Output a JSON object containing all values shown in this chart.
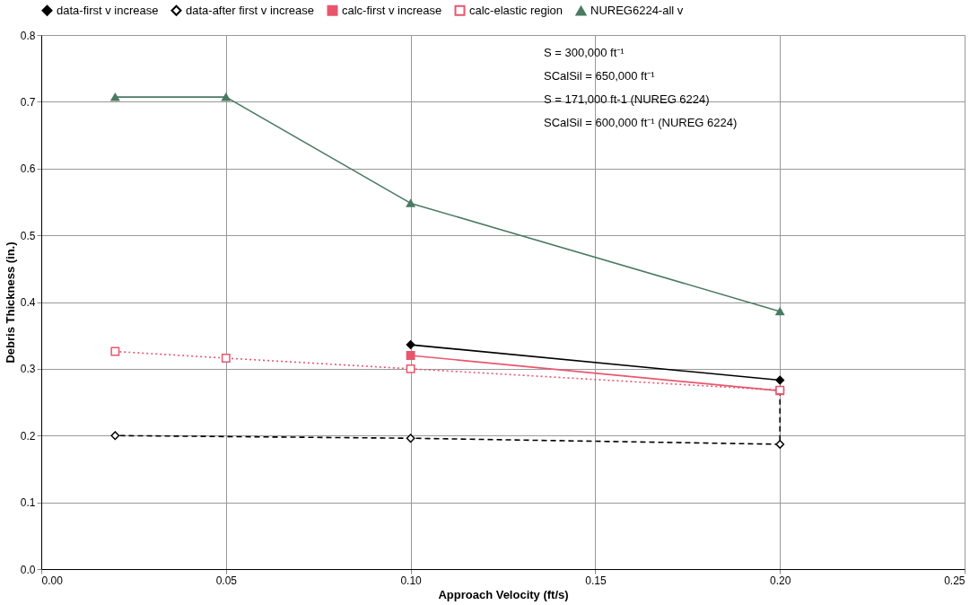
{
  "chart_data": {
    "type": "line",
    "xlabel": "Approach Velocity (ft/s)",
    "ylabel": "Debris Thickness (in.)",
    "xlim": [
      0,
      0.25
    ],
    "ylim": [
      0,
      0.8
    ],
    "xticks": [
      {
        "value": 0,
        "label": "0.00"
      },
      {
        "value": 0.05,
        "label": "0.05"
      },
      {
        "value": 0.1,
        "label": "0.10"
      },
      {
        "value": 0.15,
        "label": "0.15"
      },
      {
        "value": 0.2,
        "label": "0.20"
      },
      {
        "value": 0.25,
        "label": "0.25"
      }
    ],
    "yticks": [
      {
        "value": 0,
        "label": "0.0"
      },
      {
        "value": 0.1,
        "label": "0.1"
      },
      {
        "value": 0.2,
        "label": "0.2"
      },
      {
        "value": 0.3,
        "label": "0.3"
      },
      {
        "value": 0.4,
        "label": "0.4"
      },
      {
        "value": 0.5,
        "label": "0.5"
      },
      {
        "value": 0.6,
        "label": "0.6"
      },
      {
        "value": 0.7,
        "label": "0.7"
      },
      {
        "value": 0.8,
        "label": "0.8"
      }
    ],
    "grid": true,
    "legend": "top",
    "series": [
      {
        "name": "data-first v increase",
        "color": "#000000",
        "marker": "diamond",
        "line_style": "solid",
        "x": [
          0.1,
          0.2
        ],
        "values": [
          0.336,
          0.283
        ]
      },
      {
        "name": "data-after first v increase",
        "color": "#000000",
        "marker": "diamond",
        "line_style": "dashed",
        "x": [
          0.2,
          0.2,
          0.1,
          0.02
        ],
        "values": [
          0.268,
          0.187,
          0.196,
          0.2
        ]
      },
      {
        "name": "calc-first v increase",
        "color": "#e8566e",
        "marker": "square",
        "line_style": "solid",
        "x": [
          0.1,
          0.2
        ],
        "values": [
          0.32,
          0.267
        ]
      },
      {
        "name": "calc-elastic region",
        "color": "#e8566e",
        "marker": "square",
        "line_style": "dotted",
        "x": [
          0.02,
          0.05,
          0.1,
          0.2
        ],
        "values": [
          0.326,
          0.316,
          0.3,
          0.268
        ]
      },
      {
        "name": "NUREG6224-all v",
        "color": "#4a7a64",
        "marker": "triangle",
        "line_style": "solid",
        "x": [
          0.02,
          0.05,
          0.1,
          0.2
        ],
        "values": [
          0.707,
          0.707,
          0.548,
          0.386
        ]
      }
    ],
    "annotations": [
      "S = 300,000 ft⁻¹",
      "SCalSil = 650,000 ft⁻¹",
      "S = 171,000 ft-1 (NUREG 6224)",
      "SCalSil = 600,000 ft⁻¹ (NUREG 6224)"
    ]
  }
}
